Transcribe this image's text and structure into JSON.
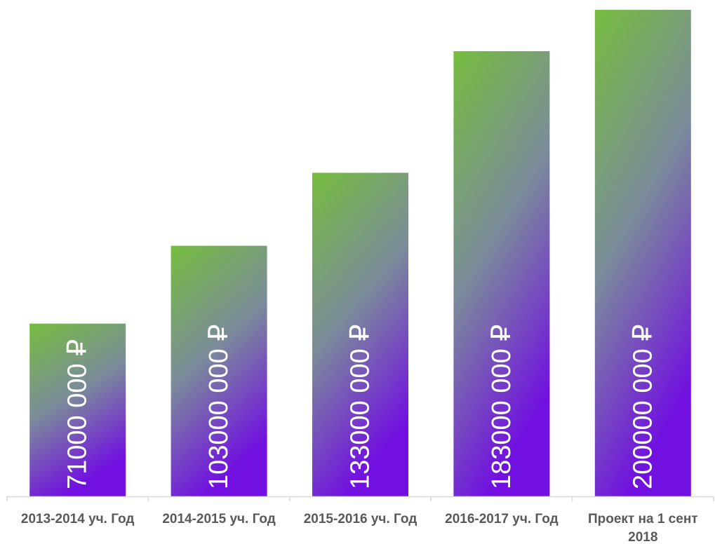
{
  "chart_data": {
    "type": "bar",
    "categories": [
      [
        "2013-2014 уч. Год"
      ],
      [
        "2014-2015 уч. Год"
      ],
      [
        "2015-2016 уч. Год"
      ],
      [
        "2016-2017 уч. Год"
      ],
      [
        "Проект на 1 сент",
        "2018"
      ]
    ],
    "values": [
      71000000,
      103000000,
      133000000,
      183000000,
      200000000
    ],
    "data_labels": [
      "71000 000 ₽",
      "103000 000 ₽",
      "133000 000 ₽",
      "183000 000 ₽",
      "200000 000 ₽"
    ],
    "title": "",
    "xlabel": "",
    "ylabel": "",
    "ylim": [
      0,
      200000000
    ],
    "grid": false,
    "legend": "none",
    "colors": {
      "bar_gradient_top": "#76bd3e",
      "bar_gradient_mid": "#7b8c9a",
      "bar_gradient_bottom": "#7110e0",
      "axis": "#d9d9d9",
      "category_text": "#595959",
      "data_label_text": "#ffffff"
    }
  }
}
